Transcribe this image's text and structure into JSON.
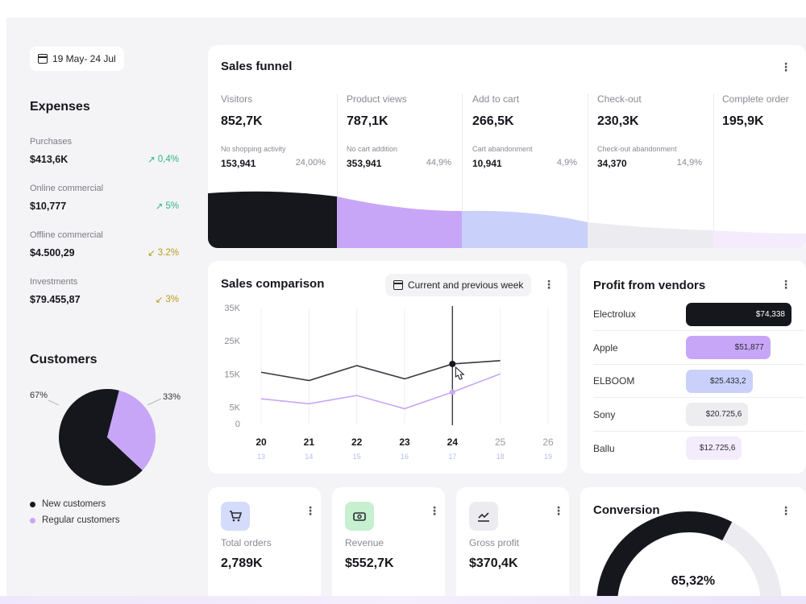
{
  "date_range": "19 May- 24 Jul",
  "expenses": {
    "title": "Expenses",
    "items": [
      {
        "label": "Purchases",
        "value": "$413,6K",
        "change": "0,4%",
        "trend": "up"
      },
      {
        "label": "Online commercial",
        "value": "$10,777",
        "change": "5%",
        "trend": "up"
      },
      {
        "label": "Offline commercial",
        "value": "$4.500,29",
        "change": "3.2%",
        "trend": "down"
      },
      {
        "label": "Investments",
        "value": "$79.455,87",
        "change": "3%",
        "trend": "down"
      }
    ]
  },
  "customers": {
    "title": "Customers",
    "new_pct": "67%",
    "regular_pct": "33%",
    "new_share": 0.67,
    "regular_share": 0.33,
    "legend_new": "New customers",
    "legend_regular": "Regular customers",
    "color_new": "#16161d",
    "color_regular": "#c8a6f7"
  },
  "sales_funnel": {
    "title": "Sales funnel",
    "stages": [
      {
        "label": "Visitors",
        "value": "852,7K",
        "sub_label": "No shopping activity",
        "sub_value": "153,941",
        "sub_pct": "24,00%"
      },
      {
        "label": "Product views",
        "value": "787,1K",
        "sub_label": "No cart addition",
        "sub_value": "353,941",
        "sub_pct": "44,9%"
      },
      {
        "label": "Add to cart",
        "value": "266,5K",
        "sub_label": "Cart abandonment",
        "sub_value": "10,941",
        "sub_pct": "4,9%"
      },
      {
        "label": "Check-out",
        "value": "230,3K",
        "sub_label": "Check-out abandonment",
        "sub_value": "34,370",
        "sub_pct": "14,9%"
      },
      {
        "label": "Complete order",
        "value": "195,9K"
      }
    ]
  },
  "sales_comparison": {
    "title": "Sales comparison",
    "period_label": "Current and previous week"
  },
  "chart_data": {
    "type": "line",
    "x": [
      20,
      21,
      22,
      23,
      24,
      25,
      26
    ],
    "x_secondary": [
      13,
      14,
      15,
      16,
      17,
      18,
      19
    ],
    "y_ticks": [
      "35K",
      "25K",
      "15K",
      "5K",
      "0"
    ],
    "ylim": [
      0,
      35000
    ],
    "series": [
      {
        "values": [
          15500,
          13000,
          17500,
          13500,
          18000,
          19000,
          null
        ],
        "color": "#3a3a42"
      },
      {
        "values": [
          7500,
          6000,
          8500,
          4500,
          9500,
          15000,
          null
        ],
        "color": "#c8a6f7"
      }
    ],
    "highlight_index": 4,
    "highlight_label": "24"
  },
  "vendors": {
    "title": "Profit from vendors",
    "items": [
      {
        "name": "Electrolux",
        "value": "$74,338",
        "share": 1.0,
        "color": "#16161d",
        "text_color": "#ffffff"
      },
      {
        "name": "Apple",
        "value": "$51,877",
        "share": 0.8,
        "color": "#c8a6f7",
        "text_color": "#2a2a33"
      },
      {
        "name": "ELBOOM",
        "value": "$25.433,2",
        "share": 0.63,
        "color": "#c9d1fb",
        "text_color": "#2a2a33"
      },
      {
        "name": "Sony",
        "value": "$20.725,6",
        "share": 0.59,
        "color": "#ededf0",
        "text_color": "#2a2a33"
      },
      {
        "name": "Ballu",
        "value": "$12.725,6",
        "share": 0.53,
        "color": "#f4ecfd",
        "text_color": "#2a2a33"
      }
    ]
  },
  "kpis": [
    {
      "label": "Total orders",
      "value": "2,789K",
      "icon": "cart-icon",
      "color": "#d5dcfb"
    },
    {
      "label": "Revenue",
      "value": "$552,7K",
      "icon": "cash-icon",
      "color": "#c6f0cf"
    },
    {
      "label": "Gross profit",
      "value": "$370,4K",
      "icon": "chart-icon",
      "color": "#ececf0"
    }
  ],
  "conversion": {
    "title": "Conversion",
    "value": "65,32%",
    "share": 0.6532
  }
}
